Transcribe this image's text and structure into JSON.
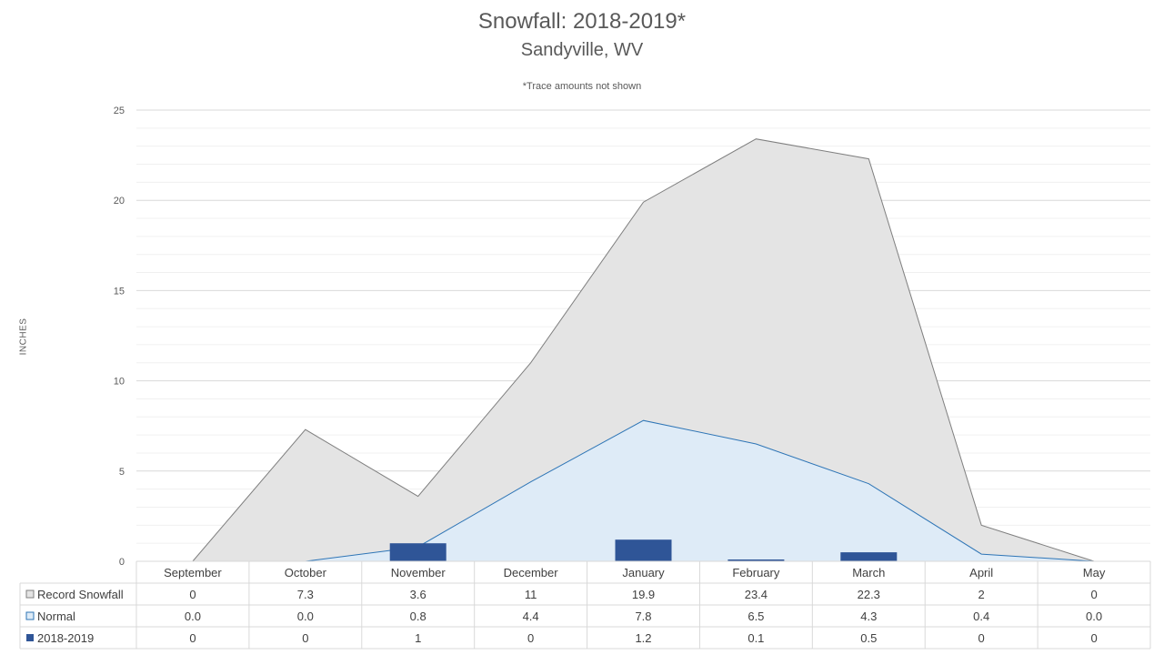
{
  "chart_data": {
    "type": "area",
    "title": "Snowfall: 2018-2019*",
    "subtitle": "Sandyville, WV",
    "note": "*Trace amounts not shown",
    "ylabel": "INCHES",
    "ylim": [
      0,
      25
    ],
    "yticks": [
      0,
      5,
      10,
      15,
      20,
      25
    ],
    "grid": true,
    "legend": "data-table",
    "categories": [
      "September",
      "October",
      "November",
      "December",
      "January",
      "February",
      "March",
      "April",
      "May"
    ],
    "series": [
      {
        "name": "Record Snowfall",
        "kind": "area",
        "color": "#e4e4e4",
        "stroke": "#7f7f7f",
        "values": [
          0,
          7.3,
          3.6,
          11,
          19.9,
          23.4,
          22.3,
          2,
          0
        ],
        "labels": [
          "0",
          "7.3",
          "3.6",
          "11",
          "19.9",
          "23.4",
          "22.3",
          "2",
          "0"
        ]
      },
      {
        "name": "Normal",
        "kind": "area",
        "color": "#deebf7",
        "stroke": "#2e75b6",
        "values": [
          0.0,
          0.0,
          0.8,
          4.4,
          7.8,
          6.5,
          4.3,
          0.4,
          0.0
        ],
        "labels": [
          "0.0",
          "0.0",
          "0.8",
          "4.4",
          "7.8",
          "6.5",
          "4.3",
          "0.4",
          "0.0"
        ]
      },
      {
        "name": "2018-2019",
        "kind": "bar",
        "color": "#2f5597",
        "values": [
          0,
          0,
          1,
          0,
          1.2,
          0.1,
          0.5,
          0,
          0
        ],
        "labels": [
          "0",
          "0",
          "1",
          "0",
          "1.2",
          "0.1",
          "0.5",
          "0",
          "0"
        ]
      }
    ]
  }
}
